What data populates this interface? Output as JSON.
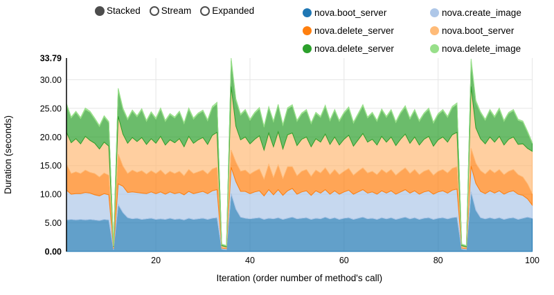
{
  "controls": {
    "items": [
      {
        "label": "Stacked",
        "selected": true
      },
      {
        "label": "Stream",
        "selected": false
      },
      {
        "label": "Expanded",
        "selected": false
      }
    ]
  },
  "axes": {
    "y": {
      "title": "Duration (seconds)",
      "ticks": [
        {
          "label": "0.00",
          "value": 0,
          "bold": true,
          "grid": false
        },
        {
          "label": "5.00",
          "value": 5,
          "bold": false,
          "grid": true
        },
        {
          "label": "10.00",
          "value": 10,
          "bold": false,
          "grid": true
        },
        {
          "label": "15.00",
          "value": 15,
          "bold": false,
          "grid": true
        },
        {
          "label": "20.00",
          "value": 20,
          "bold": false,
          "grid": true
        },
        {
          "label": "25.00",
          "value": 25,
          "bold": false,
          "grid": true
        },
        {
          "label": "30.00",
          "value": 30,
          "bold": false,
          "grid": true
        },
        {
          "label": "33.79",
          "value": 33.79,
          "bold": true,
          "grid": false
        }
      ]
    },
    "x": {
      "title": "Iteration (order number of method's call)",
      "ticks": [
        {
          "label": "20",
          "value": 20
        },
        {
          "label": "40",
          "value": 40
        },
        {
          "label": "60",
          "value": 60
        },
        {
          "label": "80",
          "value": 80
        },
        {
          "label": "100",
          "value": 100
        }
      ]
    }
  },
  "colors": {
    "grid": "#e5e5e5",
    "axis_line": "#000000",
    "control": "#4d4d4d",
    "fill_opacity": 0.7
  },
  "chart_data": {
    "type": "area",
    "stacked": true,
    "title": "",
    "xlabel": "Iteration (order number of method's call)",
    "ylabel": "Duration (seconds)",
    "x_range": [
      1,
      100
    ],
    "ylim": [
      0,
      33.79
    ],
    "legend_position": "top-right",
    "grid": true,
    "series": [
      {
        "name": "nova.boot_server",
        "color": "#1f77b4",
        "values": [
          5.5,
          5.6,
          5.5,
          5.6,
          5.5,
          5.6,
          5.5,
          5.4,
          5.6,
          5.5,
          0.3,
          8.2,
          6.8,
          5.9,
          5.7,
          5.8,
          5.6,
          5.7,
          5.8,
          5.6,
          5.7,
          5.6,
          5.8,
          5.6,
          5.7,
          5.5,
          5.8,
          5.6,
          5.7,
          5.8,
          5.6,
          5.8,
          5.9,
          0.4,
          0.3,
          10.1,
          7.4,
          6.0,
          5.8,
          5.7,
          5.8,
          5.9,
          5.6,
          5.8,
          5.7,
          5.9,
          5.6,
          5.8,
          6.0,
          5.7,
          5.8,
          5.9,
          5.6,
          5.8,
          5.7,
          6.0,
          5.7,
          5.9,
          5.6,
          5.8,
          5.9,
          5.6,
          5.8,
          6.0,
          5.7,
          5.8,
          5.6,
          5.9,
          5.7,
          5.9,
          5.6,
          5.8,
          6.0,
          5.7,
          5.9,
          5.6,
          5.8,
          5.9,
          5.6,
          5.8,
          5.9,
          5.7,
          5.9,
          6.0,
          0.4,
          0.3,
          10.4,
          7.2,
          5.9,
          5.7,
          5.9,
          5.7,
          5.9,
          5.6,
          5.8,
          5.9,
          5.6,
          5.8,
          6.0,
          5.8
        ]
      },
      {
        "name": "nova.create_image",
        "color": "#aec7e8",
        "values": [
          5.2,
          4.4,
          4.6,
          4.5,
          4.8,
          4.6,
          4.4,
          4.3,
          4.5,
          4.4,
          0.2,
          3.6,
          4.6,
          4.4,
          4.7,
          4.5,
          4.6,
          4.4,
          4.6,
          4.5,
          4.7,
          4.4,
          4.6,
          4.5,
          4.6,
          4.4,
          4.7,
          4.5,
          4.6,
          4.7,
          4.5,
          4.8,
          4.9,
          0.2,
          0.2,
          4.6,
          4.8,
          4.5,
          4.7,
          4.4,
          4.6,
          4.7,
          4.1,
          5.0,
          4.2,
          4.9,
          4.2,
          4.8,
          5.0,
          4.3,
          4.6,
          4.7,
          4.2,
          4.8,
          4.5,
          4.8,
          4.3,
          4.7,
          4.4,
          4.6,
          4.8,
          4.4,
          4.6,
          4.8,
          4.5,
          4.6,
          4.4,
          4.7,
          4.5,
          4.7,
          4.4,
          4.6,
          4.8,
          4.5,
          4.7,
          4.4,
          4.6,
          4.7,
          4.4,
          4.6,
          4.7,
          4.5,
          4.8,
          4.9,
          0.2,
          0.2,
          4.5,
          4.7,
          4.6,
          4.4,
          4.7,
          4.5,
          4.7,
          4.4,
          4.6,
          4.7,
          4.4,
          4.0,
          3.2,
          2.3
        ]
      },
      {
        "name": "nova.delete_server",
        "color": "#ff7f0e",
        "values": [
          4.5,
          3.6,
          3.8,
          3.5,
          3.9,
          3.6,
          3.7,
          3.3,
          3.6,
          3.4,
          0.1,
          5.2,
          3.5,
          3.3,
          3.8,
          3.5,
          3.9,
          3.4,
          3.7,
          3.5,
          3.8,
          3.4,
          3.6,
          3.5,
          3.7,
          3.3,
          3.8,
          3.5,
          3.6,
          3.7,
          3.4,
          3.8,
          3.9,
          0.1,
          0.1,
          3.0,
          3.4,
          3.5,
          3.7,
          3.4,
          3.6,
          3.8,
          2.9,
          4.4,
          3.0,
          4.3,
          2.9,
          4.2,
          3.8,
          3.2,
          3.6,
          3.7,
          3.3,
          3.6,
          3.5,
          3.8,
          3.4,
          3.7,
          3.4,
          3.6,
          3.8,
          3.3,
          3.6,
          3.8,
          3.5,
          3.6,
          3.4,
          3.7,
          3.5,
          3.7,
          3.3,
          3.6,
          3.8,
          3.4,
          3.7,
          3.4,
          3.6,
          3.7,
          3.3,
          3.6,
          3.7,
          3.5,
          3.8,
          3.9,
          0.1,
          0.1,
          3.1,
          3.5,
          3.6,
          3.4,
          3.7,
          3.5,
          3.7,
          3.4,
          3.6,
          3.7,
          3.4,
          3.2,
          2.6,
          2.0
        ]
      },
      {
        "name": "nova.boot_server",
        "color": "#ffbb78",
        "values": [
          5.6,
          5.4,
          5.8,
          5.2,
          5.9,
          5.6,
          5.3,
          4.9,
          5.4,
          5.1,
          0.2,
          6.6,
          5.6,
          5.3,
          5.7,
          5.4,
          5.8,
          5.2,
          5.6,
          5.3,
          5.9,
          5.2,
          5.5,
          5.4,
          5.7,
          5.1,
          5.8,
          5.3,
          5.6,
          5.7,
          5.2,
          5.9,
          6.1,
          0.3,
          0.2,
          11.1,
          6.3,
          5.5,
          5.8,
          5.3,
          5.6,
          5.8,
          5.1,
          5.5,
          5.4,
          5.8,
          5.2,
          5.6,
          5.9,
          5.3,
          5.6,
          5.7,
          5.2,
          5.5,
          5.4,
          5.9,
          5.3,
          5.7,
          5.2,
          5.6,
          5.8,
          5.1,
          5.5,
          6.0,
          5.4,
          5.6,
          5.2,
          5.8,
          5.4,
          5.7,
          5.2,
          5.6,
          5.9,
          5.3,
          5.7,
          5.2,
          5.6,
          5.8,
          5.1,
          5.5,
          5.7,
          5.4,
          5.9,
          6.0,
          0.3,
          0.2,
          10.8,
          6.2,
          5.6,
          5.3,
          5.7,
          5.4,
          5.8,
          5.2,
          5.6,
          5.7,
          5.3,
          5.8,
          6.2,
          7.4
        ]
      },
      {
        "name": "nova.delete_server",
        "color": "#2ca02c",
        "values": [
          4.8,
          4.3,
          4.6,
          4.4,
          4.7,
          4.9,
          4.2,
          3.9,
          4.4,
          4.1,
          0.15,
          4.6,
          4.3,
          4.1,
          4.6,
          4.3,
          4.8,
          4.0,
          4.5,
          4.2,
          4.7,
          4.1,
          4.4,
          4.3,
          4.6,
          4.0,
          4.7,
          4.2,
          4.5,
          4.6,
          4.1,
          4.8,
          5.0,
          0.2,
          0.15,
          4.5,
          4.5,
          4.3,
          4.6,
          4.1,
          4.5,
          4.7,
          4.0,
          4.4,
          4.3,
          4.6,
          4.1,
          4.5,
          4.7,
          4.2,
          4.4,
          4.6,
          4.0,
          4.4,
          4.3,
          4.8,
          4.1,
          4.6,
          4.1,
          4.5,
          4.7,
          4.0,
          4.4,
          4.8,
          4.2,
          4.5,
          4.1,
          4.6,
          4.3,
          4.6,
          4.0,
          4.5,
          4.7,
          4.2,
          4.6,
          4.1,
          4.4,
          4.7,
          4.0,
          4.4,
          4.6,
          4.3,
          4.7,
          4.9,
          0.2,
          0.15,
          4.4,
          4.5,
          4.5,
          4.1,
          4.6,
          4.3,
          4.7,
          4.1,
          4.5,
          4.6,
          4.2,
          3.8,
          2.8,
          1.4
        ]
      },
      {
        "name": "nova.delete_image",
        "color": "#98df8a",
        "values": [
          0.25,
          0.2,
          0.2,
          0.2,
          0.25,
          0.2,
          0.2,
          0.2,
          0.2,
          0.2,
          0.1,
          0.3,
          0.25,
          0.2,
          0.2,
          0.2,
          0.25,
          0.2,
          0.2,
          0.2,
          0.25,
          0.2,
          0.2,
          0.2,
          0.2,
          0.2,
          0.25,
          0.2,
          0.2,
          0.2,
          0.2,
          0.25,
          0.25,
          0.1,
          0.1,
          0.49,
          0.3,
          0.2,
          0.2,
          0.2,
          0.2,
          0.25,
          0.2,
          0.2,
          0.2,
          0.2,
          0.2,
          0.2,
          0.25,
          0.2,
          0.2,
          0.2,
          0.2,
          0.2,
          0.2,
          0.25,
          0.2,
          0.2,
          0.2,
          0.2,
          0.25,
          0.2,
          0.2,
          0.25,
          0.2,
          0.2,
          0.2,
          0.2,
          0.2,
          0.2,
          0.2,
          0.2,
          0.25,
          0.2,
          0.2,
          0.2,
          0.2,
          0.25,
          0.2,
          0.2,
          0.2,
          0.2,
          0.25,
          0.25,
          0.1,
          0.1,
          0.45,
          0.3,
          0.2,
          0.2,
          0.2,
          0.2,
          0.25,
          0.2,
          0.2,
          0.2,
          0.2,
          0.2,
          0.2,
          0.15
        ]
      }
    ]
  }
}
